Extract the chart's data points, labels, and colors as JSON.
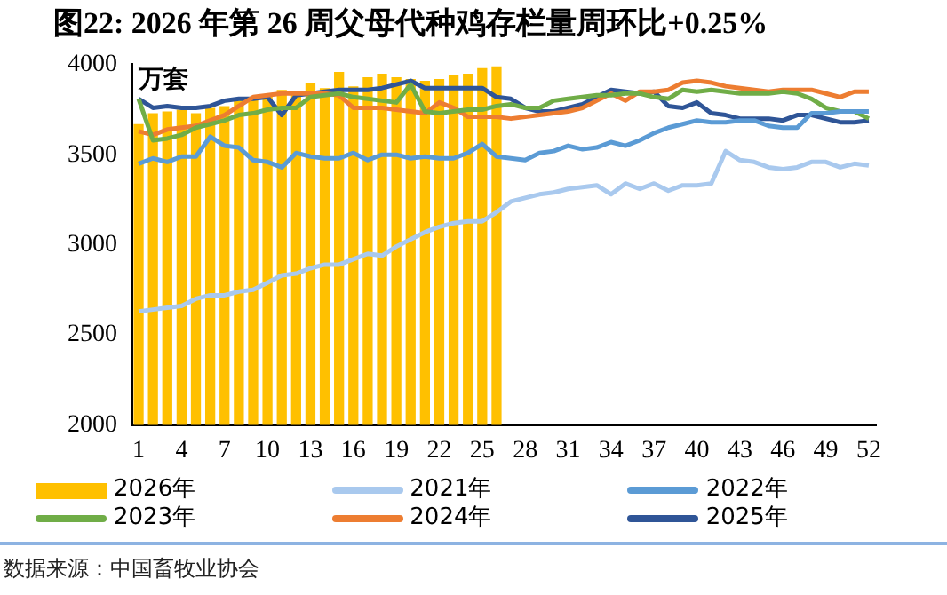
{
  "chart_data": {
    "type": "bar",
    "title": "图22: 2026 年第 26 周父母代种鸡存栏量周环比+0.25%",
    "ylabel": "万套",
    "categories": [
      "1",
      null,
      null,
      "4",
      null,
      null,
      "7",
      null,
      null,
      "10",
      null,
      null,
      "13",
      null,
      null,
      "16",
      null,
      null,
      "19",
      null,
      null,
      "22",
      null,
      null,
      "25",
      null,
      null,
      "28",
      null,
      null,
      "31",
      null,
      null,
      "34",
      null,
      null,
      "37",
      null,
      null,
      "40",
      null,
      null,
      "43",
      null,
      null,
      "46",
      null,
      null,
      "49",
      null,
      null,
      "52"
    ],
    "series": [
      {
        "name": "2026年",
        "color": "#ffc000",
        "values": [
          3670,
          3730,
          3740,
          3750,
          3730,
          3760,
          3770,
          3800,
          3820,
          3830,
          3860,
          3850,
          3900,
          3870,
          3960,
          3880,
          3930,
          3950,
          3930,
          3920,
          3910,
          3920,
          3940,
          3950,
          3980,
          3990,
          null,
          null,
          null,
          null,
          null,
          null,
          null,
          null,
          null,
          null,
          null,
          null,
          null,
          null,
          null,
          null,
          null,
          null,
          null,
          null,
          null,
          null,
          null,
          null,
          null,
          null
        ]
      },
      {
        "name": "2021年",
        "type": "line",
        "color": "#a9c9ee",
        "values": [
          2630,
          2640,
          2650,
          2660,
          2700,
          2720,
          2720,
          2740,
          2750,
          2790,
          2830,
          2840,
          2870,
          2890,
          2890,
          2920,
          2950,
          2940,
          2990,
          3030,
          3070,
          3100,
          3120,
          3130,
          3130,
          3180,
          3240,
          3260,
          3280,
          3290,
          3310,
          3320,
          3330,
          3280,
          3340,
          3310,
          3340,
          3300,
          3330,
          3330,
          3340,
          3520,
          3470,
          3460,
          3430,
          3420,
          3430,
          3460,
          3460,
          3430,
          3450,
          3440
        ]
      },
      {
        "name": "2022年",
        "type": "line",
        "color": "#5b9bd5",
        "values": [
          3450,
          3480,
          3460,
          3490,
          3490,
          3600,
          3550,
          3540,
          3470,
          3460,
          3430,
          3510,
          3490,
          3480,
          3480,
          3510,
          3470,
          3500,
          3500,
          3480,
          3490,
          3480,
          3480,
          3510,
          3560,
          3490,
          3480,
          3470,
          3510,
          3520,
          3550,
          3530,
          3540,
          3570,
          3550,
          3580,
          3620,
          3650,
          3670,
          3690,
          3680,
          3680,
          3690,
          3690,
          3660,
          3650,
          3650,
          3730,
          3730,
          3740,
          3740,
          3740
        ]
      },
      {
        "name": "2023年",
        "type": "line",
        "color": "#70ad47",
        "values": [
          3810,
          3580,
          3590,
          3610,
          3650,
          3670,
          3690,
          3720,
          3730,
          3750,
          3760,
          3760,
          3820,
          3830,
          3840,
          3820,
          3810,
          3800,
          3790,
          3890,
          3740,
          3730,
          3740,
          3750,
          3750,
          3770,
          3780,
          3760,
          3760,
          3800,
          3810,
          3820,
          3830,
          3830,
          3840,
          3840,
          3820,
          3810,
          3860,
          3850,
          3860,
          3850,
          3840,
          3840,
          3840,
          3850,
          3840,
          3810,
          3760,
          3740,
          3740,
          3700
        ]
      },
      {
        "name": "2024年",
        "type": "line",
        "color": "#ed7d31",
        "values": [
          3630,
          3610,
          3640,
          3650,
          3660,
          3690,
          3720,
          3770,
          3820,
          3830,
          3840,
          3840,
          3840,
          3840,
          3830,
          3760,
          3760,
          3760,
          3750,
          3740,
          3730,
          3790,
          3760,
          3710,
          3710,
          3710,
          3700,
          3710,
          3720,
          3730,
          3740,
          3760,
          3800,
          3840,
          3800,
          3850,
          3850,
          3860,
          3900,
          3910,
          3900,
          3880,
          3870,
          3860,
          3850,
          3860,
          3860,
          3860,
          3840,
          3820,
          3850,
          3850
        ]
      },
      {
        "name": "2025年",
        "type": "line",
        "color": "#2f5597",
        "values": [
          3810,
          3760,
          3770,
          3760,
          3760,
          3770,
          3800,
          3810,
          3810,
          3820,
          3720,
          3830,
          3840,
          3850,
          3860,
          3860,
          3860,
          3870,
          3890,
          3910,
          3870,
          3870,
          3870,
          3870,
          3870,
          3820,
          3810,
          3760,
          3740,
          3740,
          3760,
          3780,
          3820,
          3860,
          3850,
          3840,
          3850,
          3770,
          3760,
          3790,
          3730,
          3720,
          3700,
          3700,
          3700,
          3690,
          3720,
          3720,
          3700,
          3680,
          3680,
          3690
        ]
      }
    ],
    "ylim": [
      2000,
      4000
    ],
    "yticks": [
      2000,
      2500,
      3000,
      3500,
      4000
    ],
    "grid": false,
    "legend": "bottom",
    "annotations": [
      "数据来源：中国畜牧业协会"
    ]
  }
}
